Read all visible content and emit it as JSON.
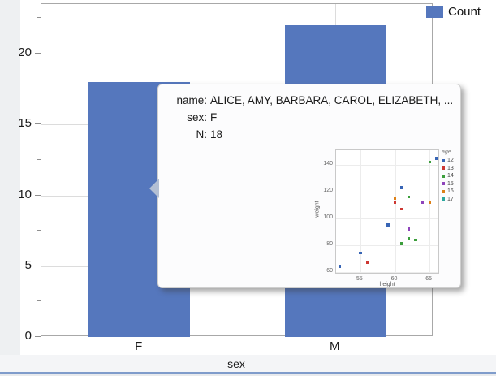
{
  "legend": {
    "label": "Count",
    "swatch_color": "#5577BD"
  },
  "xaxis": {
    "title": "sex"
  },
  "tooltip": {
    "rows": [
      {
        "label": "name:",
        "value": "ALICE, AMY, BARBARA, CAROL, ELIZABETH, ..."
      },
      {
        "label": "sex:",
        "value": "F"
      },
      {
        "label": "N:",
        "value": "18"
      }
    ]
  },
  "chart_data": [
    {
      "type": "bar",
      "title": "",
      "categories": [
        "F",
        "M"
      ],
      "values": [
        18,
        22
      ],
      "series_name": "Count",
      "xlabel": "sex",
      "ylabel": "",
      "ylim": [
        0,
        23.5
      ],
      "yticks": [
        0,
        5,
        10,
        15,
        20
      ],
      "minor_tick_step": 2.5,
      "bar_color": "#5577BD",
      "grid": true,
      "legend_position": "top-right"
    },
    {
      "type": "scatter",
      "xlabel": "height",
      "ylabel": "weight",
      "xlim": [
        51.5,
        66.5
      ],
      "ylim": [
        58,
        151
      ],
      "xticks": [
        55,
        60,
        65
      ],
      "yticks": [
        60,
        80,
        100,
        120,
        140
      ],
      "grid": true,
      "legend_title": "age",
      "legend_position": "right",
      "series": [
        {
          "name": "12",
          "color": "#3865B5",
          "points": [
            [
              52,
              64
            ],
            [
              55,
              74
            ],
            [
              59,
              95
            ],
            [
              61,
              123
            ],
            [
              66,
              145
            ]
          ]
        },
        {
          "name": "13",
          "color": "#CD3732",
          "points": [
            [
              56,
              67
            ],
            [
              60,
              112
            ],
            [
              61,
              107
            ]
          ]
        },
        {
          "name": "14",
          "color": "#3B9E3B",
          "points": [
            [
              61,
              81
            ],
            [
              62,
              85
            ],
            [
              62,
              91
            ],
            [
              62,
              116
            ],
            [
              63,
              84
            ],
            [
              65,
              142
            ]
          ]
        },
        {
          "name": "15",
          "color": "#8E44BB",
          "points": [
            [
              62,
              92
            ],
            [
              64,
              112
            ]
          ]
        },
        {
          "name": "16",
          "color": "#DD8017",
          "points": [
            [
              60,
              115
            ],
            [
              65,
              112
            ]
          ]
        },
        {
          "name": "17",
          "color": "#2AA79E",
          "points": []
        }
      ]
    }
  ]
}
